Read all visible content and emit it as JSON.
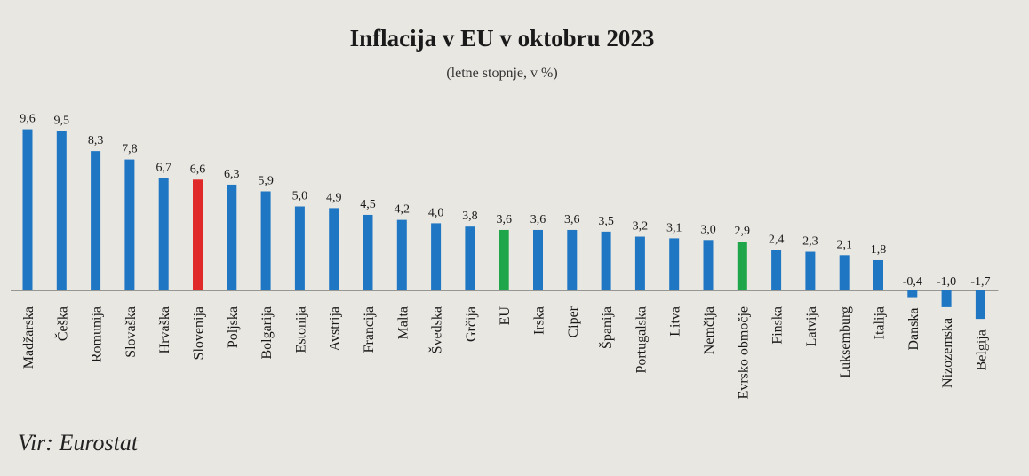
{
  "chart_data": {
    "type": "bar",
    "title": "Inflacija v EU v oktobru 2023",
    "subtitle": "(letne stopnje, v %)",
    "source": "Vir: Eurostat",
    "xlabel": "",
    "ylabel": "",
    "ylim": [
      -1.7,
      9.6
    ],
    "grid": false,
    "legend": "none",
    "categories": [
      "Madžarska",
      "Češka",
      "Romunija",
      "Slovaška",
      "Hrvaška",
      "Slovenija",
      "Poljska",
      "Bolgarija",
      "Estonija",
      "Avstrija",
      "Francija",
      "Malta",
      "Švedska",
      "Grčija",
      "EU",
      "Irska",
      "Ciper",
      "Španija",
      "Portugalska",
      "Litva",
      "Nemčija",
      "Evrsko območje",
      "Finska",
      "Latvija",
      "Luksemburg",
      "Italija",
      "Danska",
      "Nizozemska",
      "Belgija"
    ],
    "values": [
      9.6,
      9.5,
      8.3,
      7.8,
      6.7,
      6.6,
      6.3,
      5.9,
      5.0,
      4.9,
      4.5,
      4.2,
      4.0,
      3.8,
      3.6,
      3.6,
      3.6,
      3.5,
      3.2,
      3.1,
      3.0,
      2.9,
      2.4,
      2.3,
      2.1,
      1.8,
      -0.4,
      -1.0,
      -1.7
    ],
    "value_labels": [
      "9,6",
      "9,5",
      "8,3",
      "7,8",
      "6,7",
      "6,6",
      "6,3",
      "5,9",
      "5,0",
      "4,9",
      "4,5",
      "4,2",
      "4,0",
      "3,8",
      "3,6",
      "3,6",
      "3,6",
      "3,5",
      "3,2",
      "3,1",
      "3,0",
      "2,9",
      "2,4",
      "2,3",
      "2,1",
      "1,8",
      "-0,4",
      "-1,0",
      "-1,7"
    ],
    "colors": {
      "default": "#1f77c4",
      "Slovenija": "#e02a2a",
      "EU": "#1fa64a",
      "Evrsko območje": "#1fa64a",
      "axis": "#444444"
    }
  }
}
